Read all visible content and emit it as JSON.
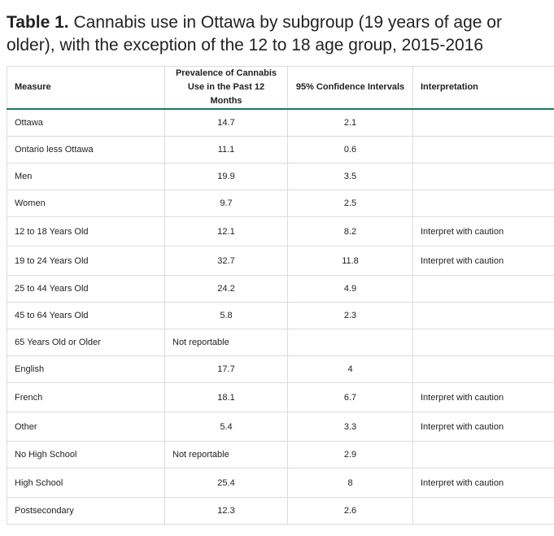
{
  "title": {
    "lead": "Table 1.",
    "rest": " Cannabis use in Ottawa by subgroup (19 years of age or older), with the exception of the 12 to 18 age group, 2015-2016"
  },
  "table": {
    "headers": {
      "measure": "Measure",
      "prevalence": "Prevalence of Cannabis Use in the Past 12 Months",
      "ci": "95% Confidence Intervals",
      "interpretation": "Interpretation"
    },
    "rows": [
      {
        "measure": "Ottawa",
        "prevalence": "14.7",
        "ci": "2.1",
        "interpretation": ""
      },
      {
        "measure": "Ontario less Ottawa",
        "prevalence": "11.1",
        "ci": "0.6",
        "interpretation": ""
      },
      {
        "measure": "Men",
        "prevalence": "19.9",
        "ci": "3.5",
        "interpretation": ""
      },
      {
        "measure": "Women",
        "prevalence": "9.7",
        "ci": "2.5",
        "interpretation": ""
      },
      {
        "measure": "12 to 18 Years Old",
        "prevalence": "12.1",
        "ci": "8.2",
        "interpretation": "Interpret with caution"
      },
      {
        "measure": "19 to 24 Years Old",
        "prevalence": "32.7",
        "ci": "11.8",
        "interpretation": "Interpret with caution"
      },
      {
        "measure": "25 to 44 Years Old",
        "prevalence": "24.2",
        "ci": "4.9",
        "interpretation": ""
      },
      {
        "measure": "45 to 64 Years Old",
        "prevalence": "5.8",
        "ci": "2.3",
        "interpretation": ""
      },
      {
        "measure": "65 Years Old or Older",
        "prevalence": "Not reportable",
        "ci": "",
        "interpretation": ""
      },
      {
        "measure": "English",
        "prevalence": "17.7",
        "ci": "4",
        "interpretation": ""
      },
      {
        "measure": "French",
        "prevalence": "18.1",
        "ci": "6.7",
        "interpretation": "Interpret with caution"
      },
      {
        "measure": "Other",
        "prevalence": "5.4",
        "ci": "3.3",
        "interpretation": "Interpret with caution"
      },
      {
        "measure": "No High School",
        "prevalence": "Not reportable",
        "ci": "2.9",
        "interpretation": ""
      },
      {
        "measure": "High School",
        "prevalence": "25.4",
        "ci": "8",
        "interpretation": "Interpret with caution"
      },
      {
        "measure": "Postsecondary",
        "prevalence": "12.3",
        "ci": "2.6",
        "interpretation": ""
      }
    ]
  },
  "colors": {
    "header_rule": "#1b7a5a",
    "grid": "#dcdcdc",
    "text": "#222222"
  }
}
